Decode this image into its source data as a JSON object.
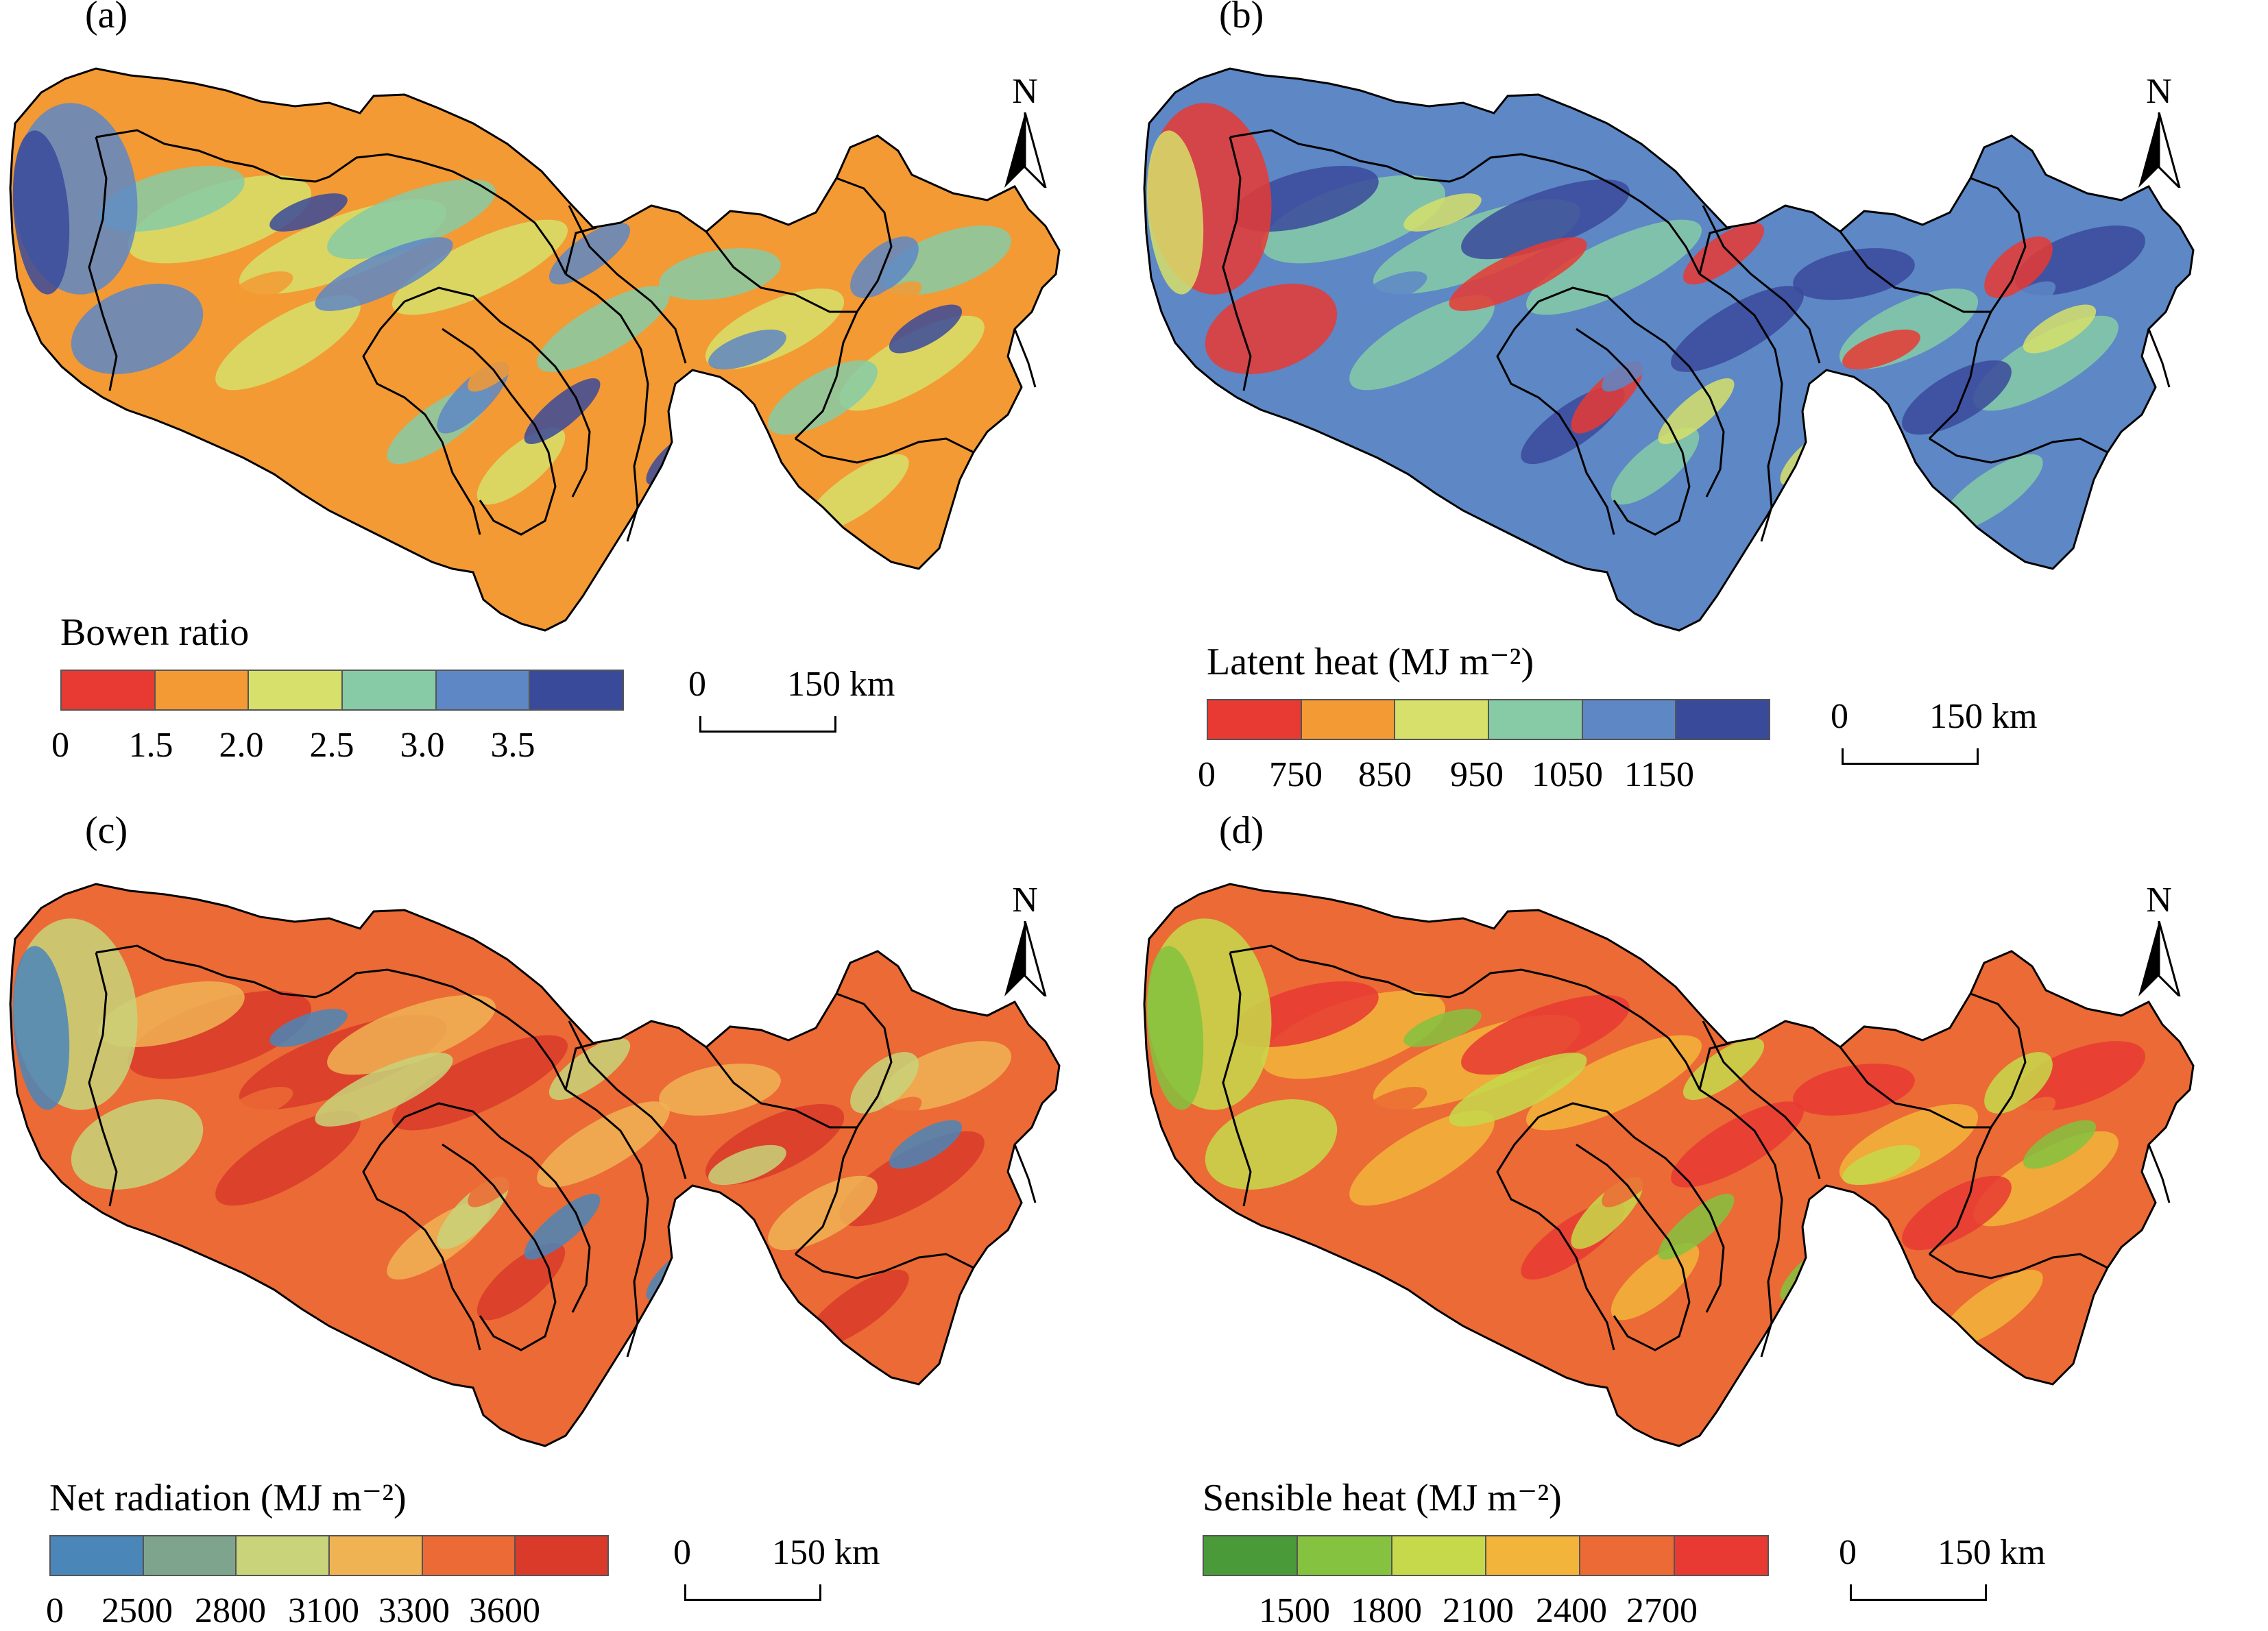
{
  "figure": {
    "panels": [
      {
        "id": "a",
        "label": "(a)",
        "legend": {
          "title": "Bowen ratio",
          "colors": [
            "#e83a32",
            "#f39a34",
            "#d6e06a",
            "#86cba6",
            "#5d87c5",
            "#3a4a9b"
          ],
          "ticks": [
            "0",
            "1.5",
            "2.0",
            "2.5",
            "3.0",
            "3.5"
          ]
        },
        "map_palette": [
          "#f39a34",
          "#d6e06a",
          "#86cba6",
          "#5d87c5",
          "#3a4a9b"
        ],
        "north": "N",
        "scale": {
          "zero": "0",
          "distance": "150 km"
        }
      },
      {
        "id": "b",
        "label": "(b)",
        "legend": {
          "title": "Latent heat (MJ m⁻²)",
          "colors": [
            "#e83a32",
            "#f39a34",
            "#d6e06a",
            "#86cba6",
            "#5d87c5",
            "#3a4a9b"
          ],
          "ticks": [
            "0",
            "750",
            "850",
            "950",
            "1050",
            "1150"
          ]
        },
        "map_palette": [
          "#5d87c5",
          "#86cba6",
          "#3a4a9b",
          "#e83a32",
          "#d6e06a"
        ],
        "north": "N",
        "scale": {
          "zero": "0",
          "distance": "150 km"
        }
      },
      {
        "id": "c",
        "label": "(c)",
        "legend": {
          "title": "Net radiation (MJ m⁻²)",
          "colors": [
            "#4a86b8",
            "#7ea48e",
            "#c8d37a",
            "#f0b354",
            "#ec6a35",
            "#d93a2a"
          ],
          "ticks": [
            "0",
            "2500",
            "2800",
            "3100",
            "3300",
            "3600"
          ]
        },
        "map_palette": [
          "#ec6a35",
          "#d93a2a",
          "#f0b354",
          "#c8d37a",
          "#4a86b8"
        ],
        "north": "N",
        "scale": {
          "zero": "0",
          "distance": "150 km"
        }
      },
      {
        "id": "d",
        "label": "(d)",
        "legend": {
          "title": "Sensible heat (MJ m⁻²)",
          "colors": [
            "#4a9a3a",
            "#84c23f",
            "#c6d94a",
            "#f2b43a",
            "#ec6a35",
            "#e83a32"
          ],
          "ticks": [
            "1500",
            "1800",
            "2100",
            "2400",
            "2700"
          ]
        },
        "map_palette": [
          "#ec6a35",
          "#f2b43a",
          "#e83a32",
          "#c6d94a",
          "#84c23f"
        ],
        "north": "N",
        "scale": {
          "zero": "0",
          "distance": "150 km"
        }
      }
    ]
  }
}
